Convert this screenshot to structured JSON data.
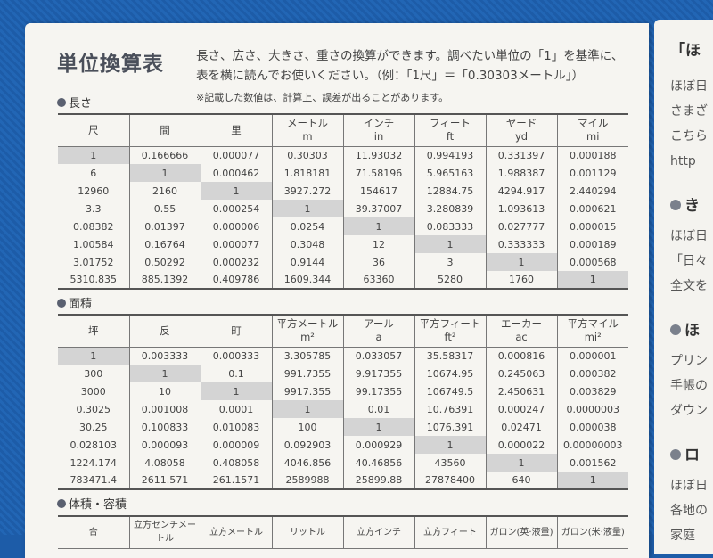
{
  "title": "単位換算表",
  "intro_line1": "長さ、広さ、大きさ、重さの換算ができます。調べたい単位の「1」を基準に、",
  "intro_line2": "表を横に読んでお使いください。（例：「1尺」＝「0.30303メートル」）",
  "note": "※記載した数値は、計算上、誤差が出ることがあります。",
  "colors": {
    "fabric": "#1d5ca8",
    "diagonal_cell": "#d4d4d4"
  },
  "tables": [
    {
      "section": "長さ",
      "headers": [
        [
          "尺",
          ""
        ],
        [
          "間",
          ""
        ],
        [
          "里",
          ""
        ],
        [
          "メートル",
          "m"
        ],
        [
          "インチ",
          "in"
        ],
        [
          "フィート",
          "ft"
        ],
        [
          "ヤード",
          "yd"
        ],
        [
          "マイル",
          "mi"
        ]
      ],
      "rows": [
        [
          "1",
          "0.166666",
          "0.000077",
          "0.30303",
          "11.93032",
          "0.994193",
          "0.331397",
          "0.000188"
        ],
        [
          "6",
          "1",
          "0.000462",
          "1.818181",
          "71.58196",
          "5.965163",
          "1.988387",
          "0.001129"
        ],
        [
          "12960",
          "2160",
          "1",
          "3927.272",
          "154617",
          "12884.75",
          "4294.917",
          "2.440294"
        ],
        [
          "3.3",
          "0.55",
          "0.000254",
          "1",
          "39.37007",
          "3.280839",
          "1.093613",
          "0.000621"
        ],
        [
          "0.08382",
          "0.01397",
          "0.000006",
          "0.0254",
          "1",
          "0.083333",
          "0.027777",
          "0.000015"
        ],
        [
          "1.00584",
          "0.16764",
          "0.000077",
          "0.3048",
          "12",
          "1",
          "0.333333",
          "0.000189"
        ],
        [
          "3.01752",
          "0.50292",
          "0.000232",
          "0.9144",
          "36",
          "3",
          "1",
          "0.000568"
        ],
        [
          "5310.835",
          "885.1392",
          "0.409786",
          "1609.344",
          "63360",
          "5280",
          "1760",
          "1"
        ]
      ]
    },
    {
      "section": "面積",
      "headers": [
        [
          "坪",
          ""
        ],
        [
          "反",
          ""
        ],
        [
          "町",
          ""
        ],
        [
          "平方メートル",
          "m²"
        ],
        [
          "アール",
          "a"
        ],
        [
          "平方フィート",
          "ft²"
        ],
        [
          "エーカー",
          "ac"
        ],
        [
          "平方マイル",
          "mi²"
        ]
      ],
      "rows": [
        [
          "1",
          "0.003333",
          "0.000333",
          "3.305785",
          "0.033057",
          "35.58317",
          "0.000816",
          "0.000001"
        ],
        [
          "300",
          "1",
          "0.1",
          "991.7355",
          "9.917355",
          "10674.95",
          "0.245063",
          "0.000382"
        ],
        [
          "3000",
          "10",
          "1",
          "9917.355",
          "99.17355",
          "106749.5",
          "2.450631",
          "0.003829"
        ],
        [
          "0.3025",
          "0.001008",
          "0.0001",
          "1",
          "0.01",
          "10.76391",
          "0.000247",
          "0.0000003"
        ],
        [
          "30.25",
          "0.100833",
          "0.010083",
          "100",
          "1",
          "1076.391",
          "0.02471",
          "0.000038"
        ],
        [
          "0.028103",
          "0.000093",
          "0.000009",
          "0.092903",
          "0.000929",
          "1",
          "0.000022",
          "0.00000003"
        ],
        [
          "1224.174",
          "4.08058",
          "0.408058",
          "4046.856",
          "40.46856",
          "43560",
          "1",
          "0.001562"
        ],
        [
          "783471.4",
          "2611.571",
          "261.1571",
          "2589988",
          "25899.88",
          "27878400",
          "640",
          "1"
        ]
      ]
    },
    {
      "section": "体積・容積",
      "headers": [
        [
          "合",
          ""
        ],
        [
          "立方センチメートル",
          ""
        ],
        [
          "立方メートル",
          ""
        ],
        [
          "リットル",
          ""
        ],
        [
          "立方インチ",
          ""
        ],
        [
          "立方フィート",
          ""
        ],
        [
          "ガロン(英·液量)",
          ""
        ],
        [
          "ガロン(米·液量)",
          ""
        ]
      ],
      "rows": []
    }
  ],
  "right_page": {
    "heading": "「ほ",
    "lines": [
      "ほぼ日",
      "さまざ",
      "こちら",
      "http"
    ],
    "sections": [
      {
        "heading": "き",
        "lines": [
          "ほぼ日",
          "「日々",
          "全文を"
        ]
      },
      {
        "heading": "ほ",
        "lines": [
          "プリン",
          "手帳の",
          "ダウン"
        ]
      },
      {
        "heading": "ロ",
        "lines": [
          "ほぼ日",
          "各地の",
          "家庭"
        ]
      }
    ]
  }
}
